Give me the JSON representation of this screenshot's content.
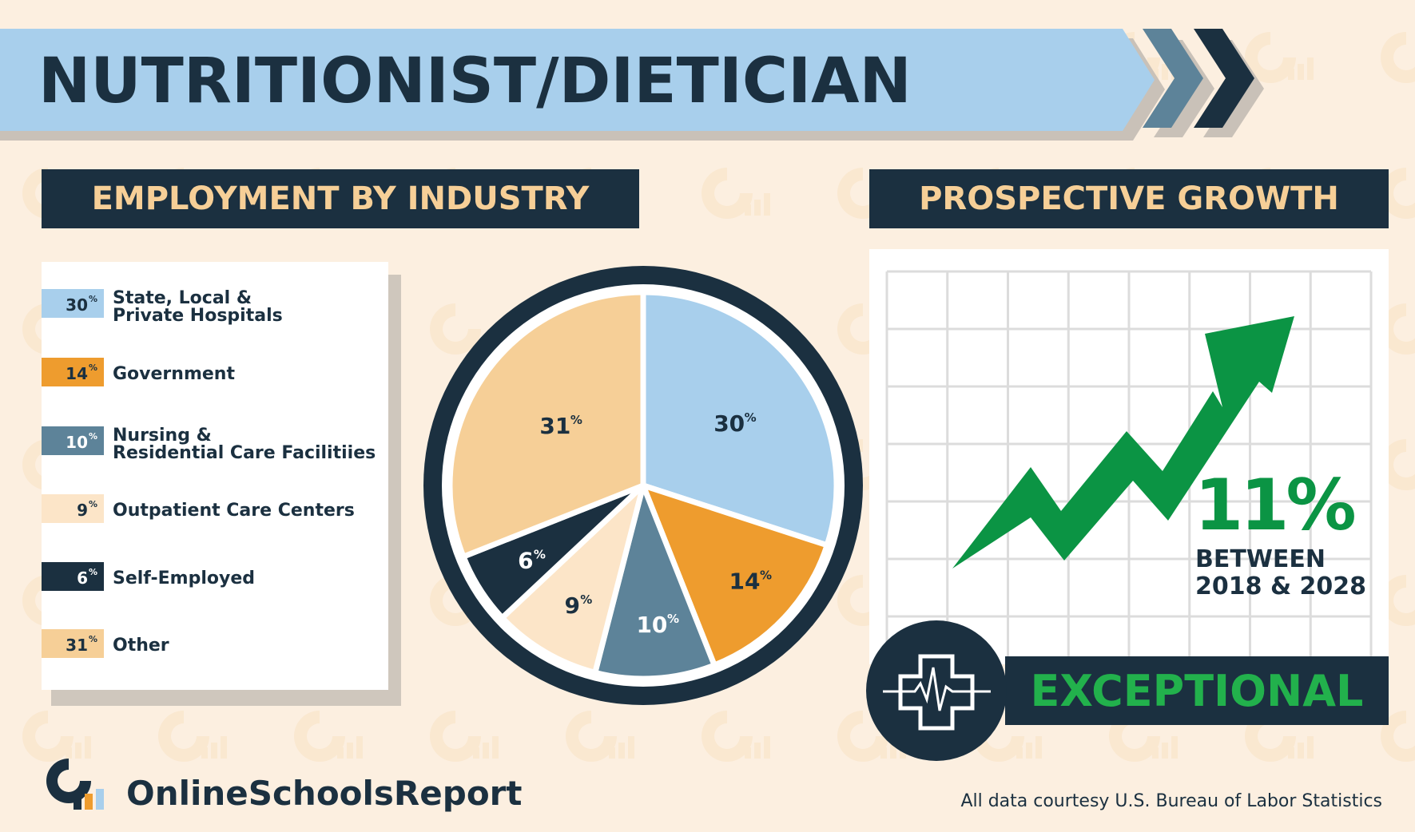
{
  "header": {
    "title": "NUTRITIONIST/DIETICIAN",
    "chevron_icon": "double-chevron-right-icon"
  },
  "employment": {
    "heading": "EMPLOYMENT BY INDUSTRY",
    "legend": [
      {
        "pct": "30",
        "line1": "State, Local &",
        "line2": "Private Hospitals",
        "color": "#a8cfec",
        "text_color": "#1b3040"
      },
      {
        "pct": "14",
        "line1": "Government",
        "line2": "",
        "color": "#ee9c2e",
        "text_color": "#1b3040"
      },
      {
        "pct": "10",
        "line1": "Nursing &",
        "line2": "Residential Care Facilitiies",
        "color": "#5d8399",
        "text_color": "#ffffff"
      },
      {
        "pct": "9",
        "line1": "Outpatient Care Centers",
        "line2": "",
        "color": "#fce5c8",
        "text_color": "#1b3040"
      },
      {
        "pct": "6",
        "line1": "Self-Employed",
        "line2": "",
        "color": "#1b3040",
        "text_color": "#ffffff"
      },
      {
        "pct": "31",
        "line1": "Other",
        "line2": "",
        "color": "#f6cf97",
        "text_color": "#1b3040"
      }
    ]
  },
  "chart_data": {
    "type": "pie",
    "categories": [
      "State, Local & Private Hospitals",
      "Government",
      "Nursing & Residential Care Facilitiies",
      "Outpatient Care Centers",
      "Self-Employed",
      "Other"
    ],
    "values": [
      30,
      14,
      10,
      9,
      6,
      31
    ],
    "labels": [
      "30",
      "14",
      "10",
      "9",
      "6",
      "31"
    ],
    "percent_symbol": "%",
    "colors": [
      "#a8cfec",
      "#ee9c2e",
      "#5d8399",
      "#fce5c8",
      "#1b3040",
      "#f6cf97"
    ],
    "label_colors": [
      "#1b3040",
      "#1b3040",
      "#ffffff",
      "#1b3040",
      "#ffffff",
      "#1b3040"
    ]
  },
  "growth": {
    "heading": "PROSPECTIVE GROWTH",
    "percent": "11%",
    "line1": "BETWEEN",
    "line2": "2018 & 2028",
    "rating": "EXCEPTIONAL",
    "arrow_icon": "trending-up-arrow-icon",
    "medical_icon": "medical-cross-heartbeat-icon",
    "arrow_color": "#0b9444"
  },
  "footer": {
    "brand": "OnlineSchoolsReport",
    "logo_icon": "online-schools-report-logo-icon",
    "source": "All data courtesy U.S. Bureau of Labor Statistics"
  },
  "colors": {
    "background": "#fcefe0",
    "navy": "#1b3040",
    "light_blue": "#a8cfec",
    "gold_text": "#f6cf97",
    "green": "#0b9444",
    "bright_green": "#22b14c"
  }
}
